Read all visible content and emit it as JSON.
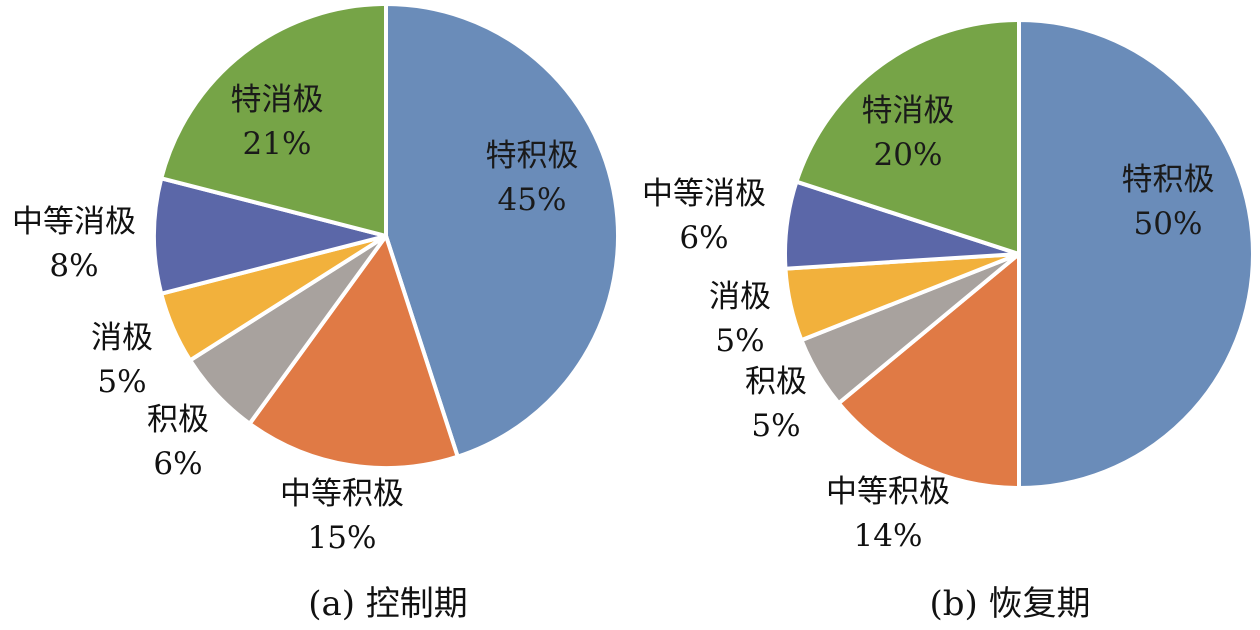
{
  "chart_data": [
    {
      "type": "pie",
      "title": "",
      "caption": "(a) 控制期",
      "slices": [
        {
          "label": "特积极",
          "value": 45,
          "value_label": "45%",
          "color": "#6a8cb9"
        },
        {
          "label": "中等积极",
          "value": 15,
          "value_label": "15%",
          "color": "#e07a45"
        },
        {
          "label": "积极",
          "value": 6,
          "value_label": "6%",
          "color": "#a8a29e"
        },
        {
          "label": "消极",
          "value": 5,
          "value_label": "5%",
          "color": "#f2b13c"
        },
        {
          "label": "中等消极",
          "value": 8,
          "value_label": "8%",
          "color": "#5b67a8"
        },
        {
          "label": "特消极",
          "value": 21,
          "value_label": "21%",
          "color": "#76a447"
        }
      ]
    },
    {
      "type": "pie",
      "title": "",
      "caption": "(b) 恢复期",
      "slices": [
        {
          "label": "特积极",
          "value": 50,
          "value_label": "50%",
          "color": "#6a8cb9"
        },
        {
          "label": "中等积极",
          "value": 14,
          "value_label": "14%",
          "color": "#e07a45"
        },
        {
          "label": "积极",
          "value": 5,
          "value_label": "5%",
          "color": "#a8a29e"
        },
        {
          "label": "消极",
          "value": 5,
          "value_label": "5%",
          "color": "#f2b13c"
        },
        {
          "label": "中等消极",
          "value": 6,
          "value_label": "6%",
          "color": "#5b67a8"
        },
        {
          "label": "特消极",
          "value": 20,
          "value_label": "20%",
          "color": "#76a447"
        }
      ]
    }
  ]
}
